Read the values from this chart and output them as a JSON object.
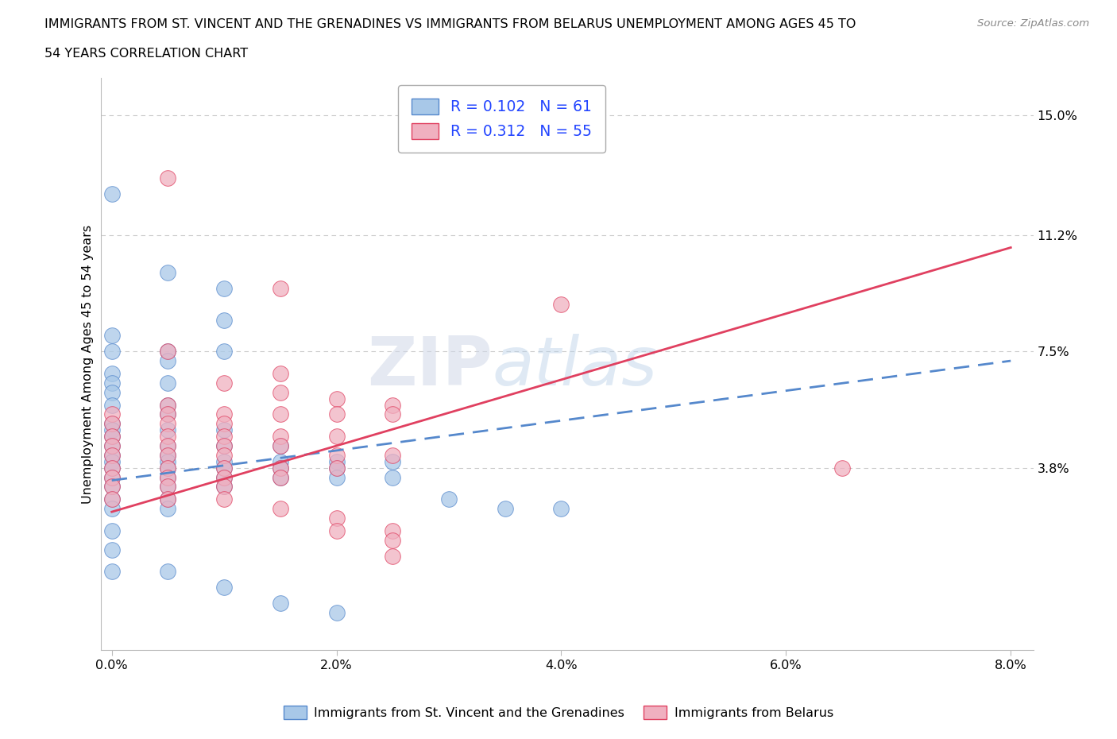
{
  "title_line1": "IMMIGRANTS FROM ST. VINCENT AND THE GRENADINES VS IMMIGRANTS FROM BELARUS UNEMPLOYMENT AMONG AGES 45 TO",
  "title_line2": "54 YEARS CORRELATION CHART",
  "source_text": "Source: ZipAtlas.com",
  "ylabel": "Unemployment Among Ages 45 to 54 years",
  "xlim": [
    -0.001,
    0.082
  ],
  "ylim": [
    -0.02,
    0.162
  ],
  "xticks": [
    0.0,
    0.02,
    0.04,
    0.06,
    0.08
  ],
  "xticklabels": [
    "0.0%",
    "2.0%",
    "4.0%",
    "6.0%",
    "8.0%"
  ],
  "ytick_right_values": [
    0.038,
    0.075,
    0.112,
    0.15
  ],
  "ytick_right_labels": [
    "3.8%",
    "7.5%",
    "11.2%",
    "15.0%"
  ],
  "watermark": "ZIPAtlas",
  "blue_color": "#a8c8e8",
  "pink_color": "#f0b0c0",
  "blue_line_color": "#5588cc",
  "pink_line_color": "#e04060",
  "R_blue": 0.102,
  "N_blue": 61,
  "R_pink": 0.312,
  "N_pink": 55,
  "legend_color": "#2244ff",
  "blue_scatter": [
    [
      0.0,
      0.125
    ],
    [
      0.005,
      0.1
    ],
    [
      0.01,
      0.095
    ],
    [
      0.01,
      0.085
    ],
    [
      0.0,
      0.08
    ],
    [
      0.0,
      0.075
    ],
    [
      0.005,
      0.075
    ],
    [
      0.01,
      0.075
    ],
    [
      0.005,
      0.072
    ],
    [
      0.0,
      0.068
    ],
    [
      0.0,
      0.065
    ],
    [
      0.005,
      0.065
    ],
    [
      0.0,
      0.062
    ],
    [
      0.0,
      0.058
    ],
    [
      0.005,
      0.058
    ],
    [
      0.005,
      0.055
    ],
    [
      0.0,
      0.052
    ],
    [
      0.0,
      0.05
    ],
    [
      0.005,
      0.05
    ],
    [
      0.01,
      0.05
    ],
    [
      0.0,
      0.048
    ],
    [
      0.0,
      0.045
    ],
    [
      0.005,
      0.045
    ],
    [
      0.01,
      0.045
    ],
    [
      0.015,
      0.045
    ],
    [
      0.0,
      0.042
    ],
    [
      0.005,
      0.042
    ],
    [
      0.0,
      0.04
    ],
    [
      0.005,
      0.04
    ],
    [
      0.01,
      0.04
    ],
    [
      0.015,
      0.04
    ],
    [
      0.02,
      0.04
    ],
    [
      0.025,
      0.04
    ],
    [
      0.0,
      0.038
    ],
    [
      0.005,
      0.038
    ],
    [
      0.01,
      0.038
    ],
    [
      0.015,
      0.038
    ],
    [
      0.02,
      0.038
    ],
    [
      0.0,
      0.035
    ],
    [
      0.005,
      0.035
    ],
    [
      0.01,
      0.035
    ],
    [
      0.015,
      0.035
    ],
    [
      0.02,
      0.035
    ],
    [
      0.025,
      0.035
    ],
    [
      0.0,
      0.032
    ],
    [
      0.005,
      0.032
    ],
    [
      0.01,
      0.032
    ],
    [
      0.0,
      0.028
    ],
    [
      0.005,
      0.028
    ],
    [
      0.03,
      0.028
    ],
    [
      0.0,
      0.025
    ],
    [
      0.005,
      0.025
    ],
    [
      0.035,
      0.025
    ],
    [
      0.04,
      0.025
    ],
    [
      0.0,
      0.018
    ],
    [
      0.0,
      0.012
    ],
    [
      0.0,
      0.005
    ],
    [
      0.005,
      0.005
    ],
    [
      0.01,
      0.0
    ],
    [
      0.015,
      -0.005
    ],
    [
      0.02,
      -0.008
    ]
  ],
  "pink_scatter": [
    [
      0.005,
      0.13
    ],
    [
      0.015,
      0.095
    ],
    [
      0.04,
      0.09
    ],
    [
      0.005,
      0.075
    ],
    [
      0.015,
      0.068
    ],
    [
      0.01,
      0.065
    ],
    [
      0.015,
      0.062
    ],
    [
      0.02,
      0.06
    ],
    [
      0.005,
      0.058
    ],
    [
      0.025,
      0.058
    ],
    [
      0.0,
      0.055
    ],
    [
      0.005,
      0.055
    ],
    [
      0.01,
      0.055
    ],
    [
      0.015,
      0.055
    ],
    [
      0.02,
      0.055
    ],
    [
      0.025,
      0.055
    ],
    [
      0.0,
      0.052
    ],
    [
      0.005,
      0.052
    ],
    [
      0.01,
      0.052
    ],
    [
      0.0,
      0.048
    ],
    [
      0.005,
      0.048
    ],
    [
      0.01,
      0.048
    ],
    [
      0.015,
      0.048
    ],
    [
      0.02,
      0.048
    ],
    [
      0.0,
      0.045
    ],
    [
      0.005,
      0.045
    ],
    [
      0.01,
      0.045
    ],
    [
      0.015,
      0.045
    ],
    [
      0.0,
      0.042
    ],
    [
      0.005,
      0.042
    ],
    [
      0.01,
      0.042
    ],
    [
      0.02,
      0.042
    ],
    [
      0.025,
      0.042
    ],
    [
      0.0,
      0.038
    ],
    [
      0.005,
      0.038
    ],
    [
      0.01,
      0.038
    ],
    [
      0.015,
      0.038
    ],
    [
      0.02,
      0.038
    ],
    [
      0.0,
      0.035
    ],
    [
      0.005,
      0.035
    ],
    [
      0.01,
      0.035
    ],
    [
      0.015,
      0.035
    ],
    [
      0.0,
      0.032
    ],
    [
      0.005,
      0.032
    ],
    [
      0.01,
      0.032
    ],
    [
      0.0,
      0.028
    ],
    [
      0.005,
      0.028
    ],
    [
      0.01,
      0.028
    ],
    [
      0.015,
      0.025
    ],
    [
      0.02,
      0.022
    ],
    [
      0.02,
      0.018
    ],
    [
      0.025,
      0.018
    ],
    [
      0.025,
      0.015
    ],
    [
      0.065,
      0.038
    ],
    [
      0.025,
      0.01
    ]
  ],
  "bg_color": "#ffffff",
  "grid_color": "#cccccc",
  "blue_reg_line": [
    0.0,
    0.08,
    0.034,
    0.072
  ],
  "pink_reg_line": [
    0.0,
    0.08,
    0.024,
    0.108
  ]
}
